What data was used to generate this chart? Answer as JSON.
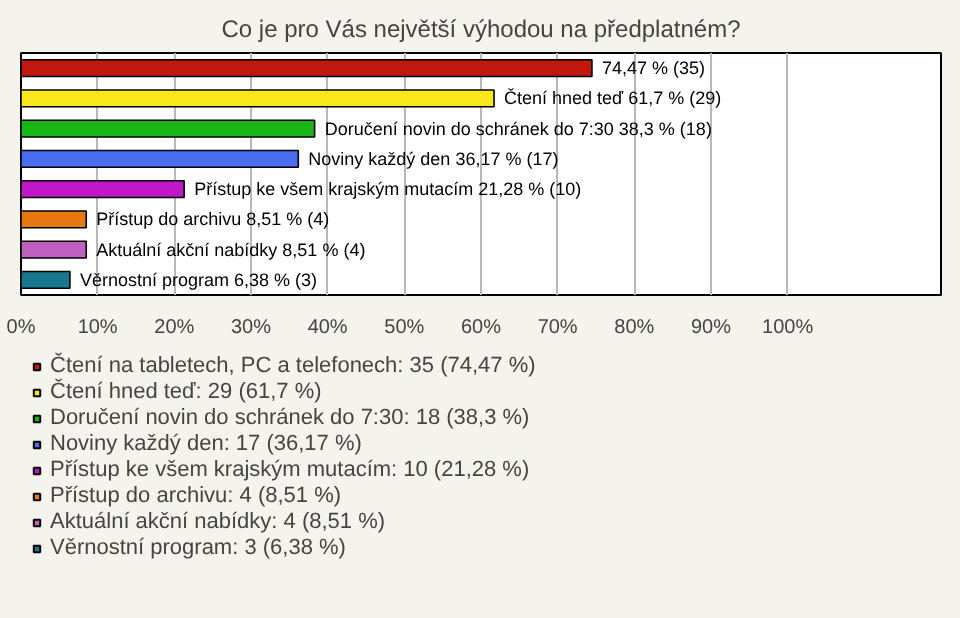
{
  "chart_data": {
    "type": "bar",
    "orientation": "horizontal",
    "title": "Co je pro Vás největší výhodou na předplatném?",
    "categories": [
      null,
      null,
      null,
      null,
      null,
      null,
      null,
      null
    ],
    "series": [
      {
        "name": "Čtení na tabletech, PC a telefonech: 35 (74,47 %)",
        "color": "#c0180c",
        "values": [
          74.47,
          null,
          null,
          null,
          null,
          null,
          null,
          null
        ],
        "value_labels": [
          "74,47 % (35)",
          null,
          null,
          null,
          null,
          null,
          null,
          null
        ]
      },
      {
        "name": "Čtení hned teď: 29 (61,7 %)",
        "color": "#f8e81c",
        "values": [
          null,
          61.7,
          null,
          null,
          null,
          null,
          null,
          null
        ],
        "value_labels": [
          null,
          "Čtení hned teď 61,7 % (29)",
          null,
          null,
          null,
          null,
          null,
          null
        ]
      },
      {
        "name": "Doručení novin do schránek do 7:30: 18 (38,3 %)",
        "color": "#18b418",
        "values": [
          null,
          null,
          38.3,
          null,
          null,
          null,
          null,
          null
        ],
        "value_labels": [
          null,
          null,
          "Doručení novin do schránek do 7:30 38,3 % (18)",
          null,
          null,
          null,
          null,
          null
        ]
      },
      {
        "name": "Noviny každý den: 17 (36,17 %)",
        "color": "#4a6cf0",
        "values": [
          null,
          null,
          null,
          36.17,
          null,
          null,
          null,
          null
        ],
        "value_labels": [
          null,
          null,
          null,
          "Noviny každý den 36,17 % (17)",
          null,
          null,
          null,
          null
        ]
      },
      {
        "name": "Přístup ke všem krajským mutacím: 10 (21,28 %)",
        "color": "#c018c8",
        "values": [
          null,
          null,
          null,
          null,
          21.28,
          null,
          null,
          null
        ],
        "value_labels": [
          null,
          null,
          null,
          null,
          "Přístup ke všem krajským mutacím 21,28 % (10)",
          null,
          null,
          null
        ]
      },
      {
        "name": "Přístup do archivu: 4 (8,51 %)",
        "color": "#e87810",
        "values": [
          null,
          null,
          null,
          null,
          null,
          8.51,
          null,
          null
        ],
        "value_labels": [
          null,
          null,
          null,
          null,
          null,
          "Přístup do archivu 8,51 % (4)",
          null,
          null
        ]
      },
      {
        "name": "Aktuální akční nabídky: 4 (8,51 %)",
        "color": "#c060c0",
        "values": [
          null,
          null,
          null,
          null,
          null,
          null,
          8.51,
          null
        ],
        "value_labels": [
          null,
          null,
          null,
          null,
          null,
          null,
          "Aktuální akční nabídky 8,51 % (4)",
          null
        ]
      },
      {
        "name": "Věrnostní program: 3 (6,38 %)",
        "color": "#187890",
        "values": [
          null,
          null,
          null,
          null,
          null,
          null,
          null,
          6.38
        ],
        "value_labels": [
          null,
          null,
          null,
          null,
          null,
          null,
          null,
          "Věrnostní program 6,38 % (3)"
        ]
      }
    ],
    "xlim": [
      0,
      120
    ],
    "xticks": [
      {
        "value": 0,
        "label": "0%"
      },
      {
        "value": 10,
        "label": "10%"
      },
      {
        "value": 20,
        "label": "20%"
      },
      {
        "value": 30,
        "label": "30%"
      },
      {
        "value": 40,
        "label": "40%"
      },
      {
        "value": 50,
        "label": "50%"
      },
      {
        "value": 60,
        "label": "60%"
      },
      {
        "value": 70,
        "label": "70%"
      },
      {
        "value": 80,
        "label": "80%"
      },
      {
        "value": 90,
        "label": "90%"
      },
      {
        "value": 100,
        "label": "100%"
      }
    ],
    "grid": "x",
    "legend": "bottom",
    "tick_labels": "x"
  }
}
